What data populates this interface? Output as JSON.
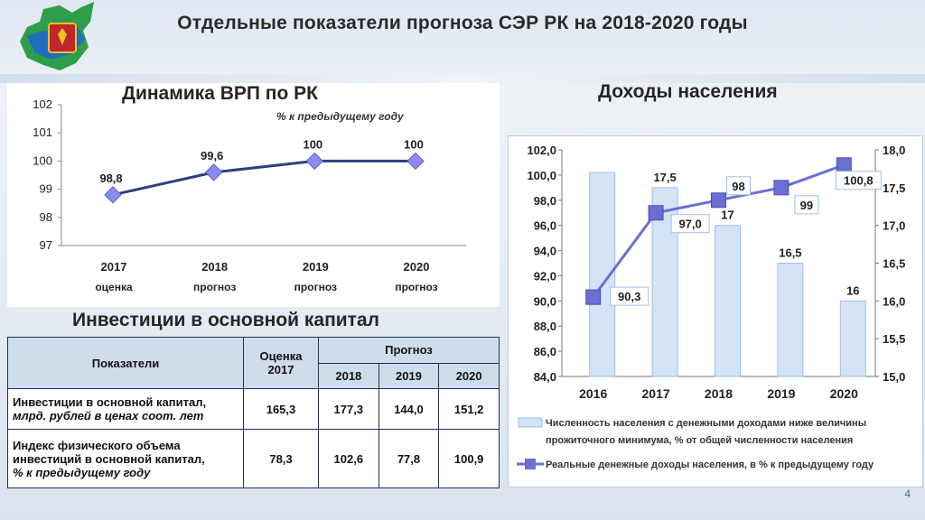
{
  "slide": {
    "title": "Отдельные показатели прогноза СЭР РК на 2018-2020 годы",
    "page_number": "4"
  },
  "colors": {
    "line": "#6a6fd4",
    "marker": "#8a8df0",
    "bar_fill": "#d4e4f7",
    "bar_stroke": "#9dbde6",
    "table_header": "#cfdcec",
    "table_border": "#1f2f55"
  },
  "vrp": {
    "title": "Динамика ВРП по РК",
    "subtitle": "% к предыдущему году"
  },
  "income": {
    "title": "Доходы населения"
  },
  "investments": {
    "title": "Инвестиции в основной капитал",
    "header_indicator": "Показатели",
    "header_estimate": "Оценка 2017",
    "header_forecast": "Прогноз",
    "years": [
      "2018",
      "2019",
      "2020"
    ],
    "rows": [
      {
        "label": "Инвестиции в основной капитал,",
        "unit": "млрд. рублей в ценах соот. лет",
        "values": [
          "165,3",
          "177,3",
          "144,0",
          "151,2"
        ]
      },
      {
        "label": "Индекс физического объема инвестиций в основной капитал,",
        "unit": "% к предыдущему году",
        "values": [
          "78,3",
          "102,6",
          "77,8",
          "100,9"
        ]
      }
    ]
  },
  "chart_data": [
    {
      "type": "line",
      "title": "Динамика ВРП по РК",
      "ylabel": "% к предыдущему году",
      "categories": [
        "2017",
        "2018",
        "2019",
        "2020"
      ],
      "category_sublabels": [
        "оценка",
        "прогноз",
        "прогноз",
        "прогноз"
      ],
      "values": [
        98.8,
        99.6,
        100,
        100
      ],
      "data_labels": [
        "98,8",
        "99,6",
        "100",
        "100"
      ],
      "ylim": [
        97,
        102
      ],
      "yticks": [
        "97",
        "98",
        "99",
        "100",
        "101",
        "102"
      ],
      "grid": false
    },
    {
      "type": "bar",
      "title": "Доходы населения",
      "categories": [
        "2016",
        "2017",
        "2018",
        "2019",
        "2020"
      ],
      "series": [
        {
          "name": "Численность населения с денежными доходами ниже величины прожиточного минимума, % от общей численности населения",
          "type": "bar",
          "axis": "right",
          "values": [
            17.7,
            17.5,
            17,
            16.5,
            16
          ],
          "data_labels": [
            "",
            "17,5",
            "17",
            "16,5",
            "16"
          ]
        },
        {
          "name": "Реальные денежные доходы населения, в % к предыдущему году",
          "type": "line",
          "axis": "left",
          "values": [
            90.3,
            97.0,
            98,
            99,
            100.8
          ],
          "data_labels": [
            "90,3",
            "97,0",
            "98",
            "99",
            "100,8"
          ]
        }
      ],
      "y_left": {
        "range": [
          84,
          102
        ],
        "ticks": [
          "84,0",
          "86,0",
          "88,0",
          "90,0",
          "92,0",
          "94,0",
          "96,0",
          "98,0",
          "100,0",
          "102,0"
        ]
      },
      "y_right": {
        "range": [
          15,
          18
        ],
        "ticks": [
          "15,0",
          "15,5",
          "16,0",
          "16,5",
          "17,0",
          "17,5",
          "18,0"
        ]
      },
      "legend_position": "bottom"
    }
  ]
}
